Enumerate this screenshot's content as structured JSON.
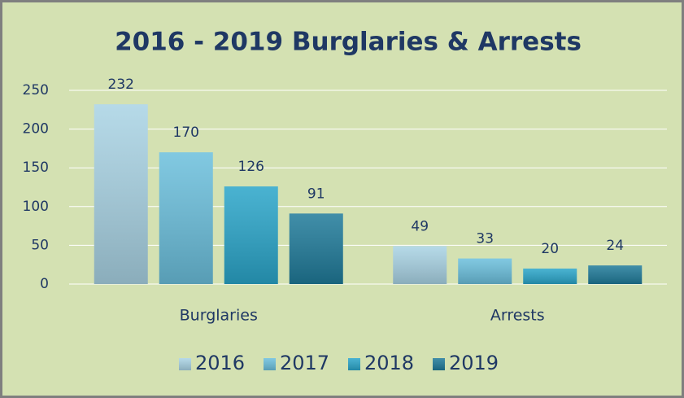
{
  "chart_data": {
    "type": "bar",
    "title": "2016 - 2019 Burglaries & Arrests",
    "categories": [
      "Burglaries",
      "Arrests"
    ],
    "series": [
      {
        "name": "2016",
        "color": "#a9d3e4",
        "values": [
          232,
          49
        ]
      },
      {
        "name": "2017",
        "color": "#6bbfdc",
        "values": [
          170,
          33
        ]
      },
      {
        "name": "2018",
        "color": "#2aa5c9",
        "values": [
          126,
          20
        ]
      },
      {
        "name": "2019",
        "color": "#1f7a99",
        "values": [
          91,
          24
        ]
      }
    ],
    "ylim": [
      0,
      250
    ],
    "yticks": [
      0,
      50,
      100,
      150,
      200,
      250
    ],
    "grid": true,
    "legend": "bottom"
  }
}
